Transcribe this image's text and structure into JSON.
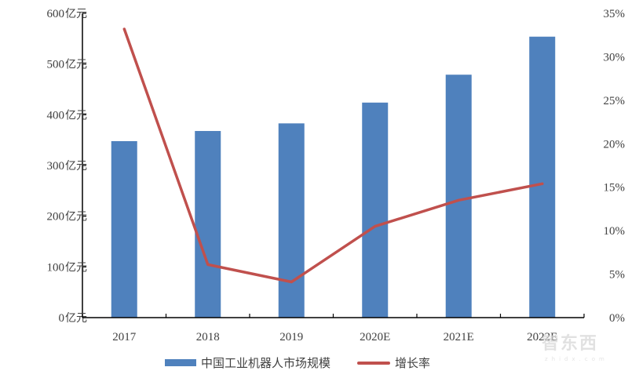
{
  "chart_data": {
    "type": "bar+line",
    "title": "",
    "categories": [
      "2017",
      "2018",
      "2019",
      "2020E",
      "2021E",
      "2022E"
    ],
    "series": [
      {
        "name": "中国工业机器人市场规模",
        "type": "bar",
        "axis": "left",
        "unit": "亿元",
        "color": "#4F81BD",
        "values": [
          348,
          368,
          383,
          424,
          479,
          554
        ]
      },
      {
        "name": "增长率",
        "type": "line",
        "axis": "right",
        "unit": "%",
        "color": "#C0504D",
        "values": [
          33.2,
          6.1,
          4.1,
          10.5,
          13.5,
          15.4
        ]
      }
    ],
    "left_axis": {
      "min": 0,
      "max": 600,
      "step": 100,
      "tick_labels": [
        "0亿元",
        "100亿元",
        "200亿元",
        "300亿元",
        "400亿元",
        "500亿元",
        "600亿元"
      ]
    },
    "right_axis": {
      "min": 0,
      "max": 35,
      "step": 5,
      "tick_labels": [
        "0%",
        "5%",
        "10%",
        "15%",
        "20%",
        "25%",
        "30%",
        "35%"
      ]
    },
    "xlabel": "",
    "ylabel": "",
    "grid": false,
    "legend_position": "bottom"
  },
  "legend": {
    "items": [
      {
        "label": "中国工业机器人市场规模",
        "color": "#4F81BD",
        "kind": "bar"
      },
      {
        "label": "增长率",
        "color": "#C0504D",
        "kind": "line"
      }
    ]
  },
  "watermark": {
    "text": "智东西",
    "sub": "zhidx.com"
  }
}
